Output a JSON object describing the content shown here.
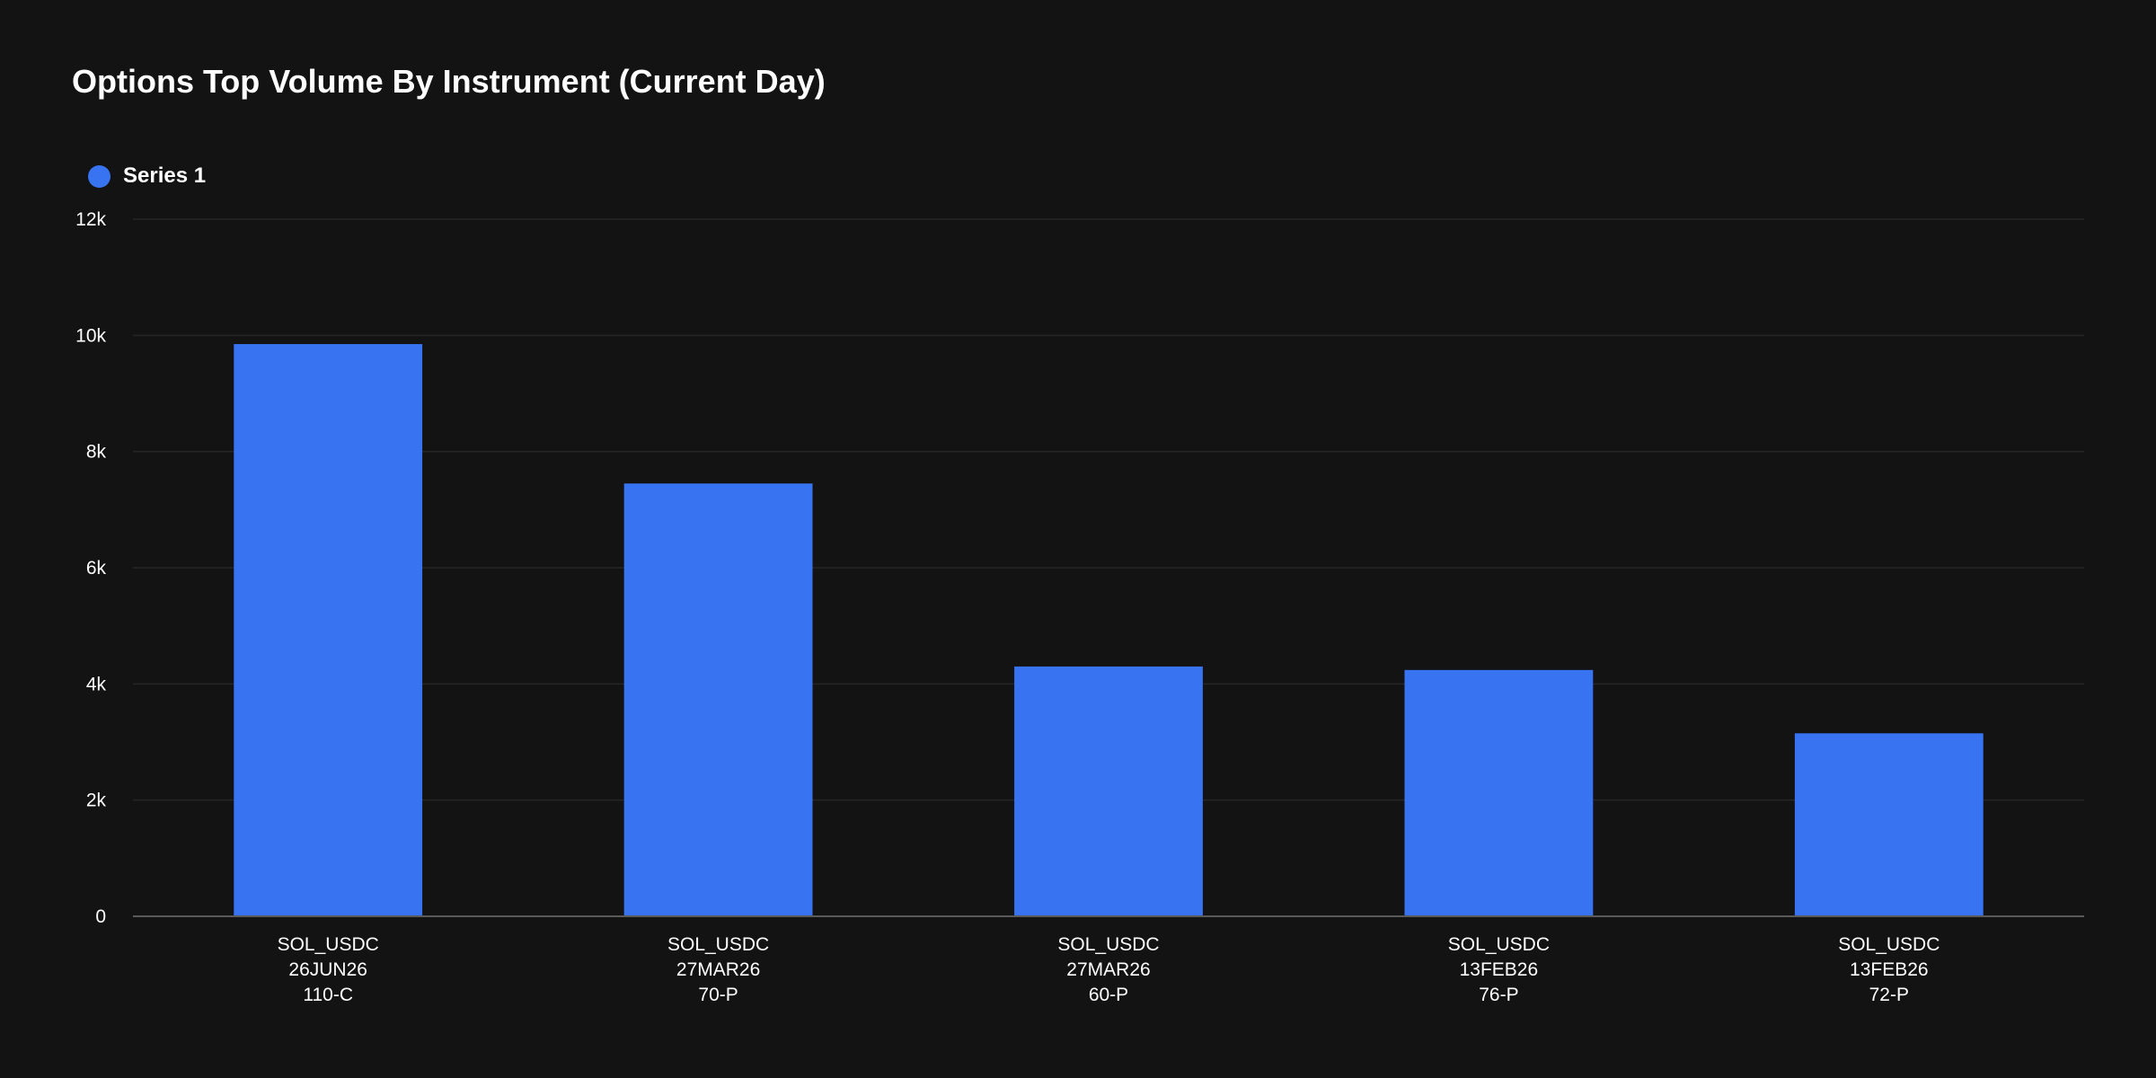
{
  "chart_data": {
    "type": "bar",
    "title": "Options Top Volume By Instrument (Current Day)",
    "categories": [
      [
        "SOL_USDC",
        "26JUN26",
        "110-C"
      ],
      [
        "SOL_USDC",
        "27MAR26",
        "70-P"
      ],
      [
        "SOL_USDC",
        "27MAR26",
        "60-P"
      ],
      [
        "SOL_USDC",
        "13FEB26",
        "76-P"
      ],
      [
        "SOL_USDC",
        "13FEB26",
        "72-P"
      ]
    ],
    "series": [
      {
        "name": "Series 1",
        "color": "#3874f2",
        "values": [
          9850,
          7450,
          4300,
          4240,
          3150
        ]
      }
    ],
    "yticks": [
      {
        "value": 0,
        "label": "0"
      },
      {
        "value": 2000,
        "label": "2k"
      },
      {
        "value": 4000,
        "label": "4k"
      },
      {
        "value": 6000,
        "label": "6k"
      },
      {
        "value": 8000,
        "label": "8k"
      },
      {
        "value": 10000,
        "label": "10k"
      },
      {
        "value": 12000,
        "label": "12k"
      }
    ],
    "ylim": [
      0,
      12000
    ],
    "xlabel": "",
    "ylabel": "",
    "grid": true,
    "legend": "top-left"
  },
  "colors": {
    "background": "#131313",
    "grid": "#262626",
    "axis": "#5a5a5a",
    "text": "#ffffff"
  }
}
